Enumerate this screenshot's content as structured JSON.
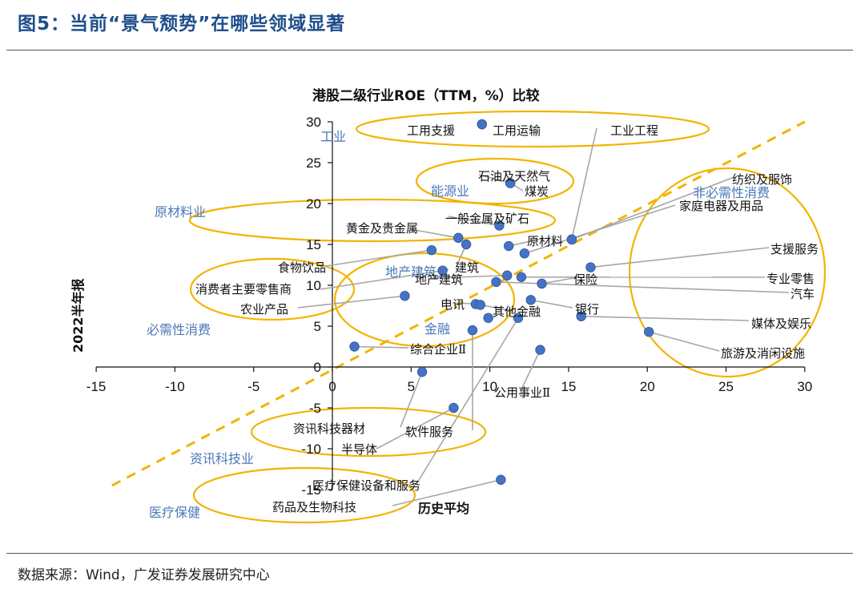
{
  "figure_title": "图5：当前“景气颓势”在哪些领域显著",
  "source": "数据来源：Wind，广发证券发展研究中心",
  "chart_data": {
    "type": "scatter",
    "title": "港股二级行业ROE（TTM，%）比较",
    "xlabel": "历史平均",
    "ylabel": "2022半年报",
    "xlim": [
      -15,
      30
    ],
    "ylim": [
      -15,
      30
    ],
    "xticks": [
      -15,
      -10,
      -5,
      0,
      5,
      10,
      15,
      20,
      25,
      30
    ],
    "yticks": [
      30,
      25,
      20,
      15,
      10,
      5,
      0,
      -5,
      -10,
      -15
    ],
    "reference_line": "y = x",
    "points": [
      {
        "name": "工用支援",
        "x": 9.5,
        "y": 29.7
      },
      {
        "name": "工用运输",
        "x": 9.5,
        "y": 29.7
      },
      {
        "name": "工业工程",
        "x": 15.2,
        "y": 15.6
      },
      {
        "name": "石油及天然气",
        "x": 11.3,
        "y": 22.5
      },
      {
        "name": "煤炭",
        "x": 11.3,
        "y": 22.5
      },
      {
        "name": "纺织及服饰",
        "x": 15.2,
        "y": 15.6
      },
      {
        "name": "家庭电器及用品",
        "x": 12.2,
        "y": 13.9
      },
      {
        "name": "原材料",
        "x": 11.2,
        "y": 14.8
      },
      {
        "name": "一般金属及矿石",
        "x": 10.6,
        "y": 17.3
      },
      {
        "name": "黄金及贵金属",
        "x": 8.0,
        "y": 15.8
      },
      {
        "name": "食物饮品",
        "x": 6.3,
        "y": 14.3
      },
      {
        "name": "建筑",
        "x": 8.5,
        "y": 15.0
      },
      {
        "name": "地产建筑",
        "x": 11.1,
        "y": 11.2
      },
      {
        "name": "支援服务",
        "x": 16.4,
        "y": 12.2
      },
      {
        "name": "保险",
        "x": 13.3,
        "y": 10.2
      },
      {
        "name": "专业零售",
        "x": 12.0,
        "y": 11.0
      },
      {
        "name": "汽车",
        "x": 10.4,
        "y": 10.4
      },
      {
        "name": "消费者主要零售商",
        "x": 7.0,
        "y": 11.8
      },
      {
        "name": "农业产品",
        "x": 4.6,
        "y": 8.7
      },
      {
        "name": "电讯",
        "x": 9.1,
        "y": 7.7
      },
      {
        "name": "银行",
        "x": 12.6,
        "y": 8.2
      },
      {
        "name": "其他金融",
        "x": 9.4,
        "y": 7.6
      },
      {
        "name": "媒体及娱乐",
        "x": 15.8,
        "y": 6.2
      },
      {
        "name": "金融",
        "x": 9.9,
        "y": 6.0
      },
      {
        "name": "综合企业Ⅱ",
        "x": 1.4,
        "y": 2.5
      },
      {
        "name": "公用事业Ⅱ",
        "x": 13.2,
        "y": 2.1
      },
      {
        "name": "旅游及消闲设施",
        "x": 20.1,
        "y": 4.3
      },
      {
        "name": "资讯科技器材",
        "x": 5.7,
        "y": -0.6
      },
      {
        "name": "半导体",
        "x": 7.7,
        "y": -5.0
      },
      {
        "name": "软件服务",
        "x": 8.9,
        "y": 4.5
      },
      {
        "name": "医疗保健设备和服务",
        "x": 11.8,
        "y": 6.0
      },
      {
        "name": "药品及生物科技",
        "x": 10.7,
        "y": -13.8
      }
    ],
    "groups": [
      "工业",
      "能源业",
      "非必需性消费",
      "原材料业",
      "地产建筑业",
      "必需性消费",
      "金融",
      "资讯科技业",
      "医疗保健"
    ]
  }
}
